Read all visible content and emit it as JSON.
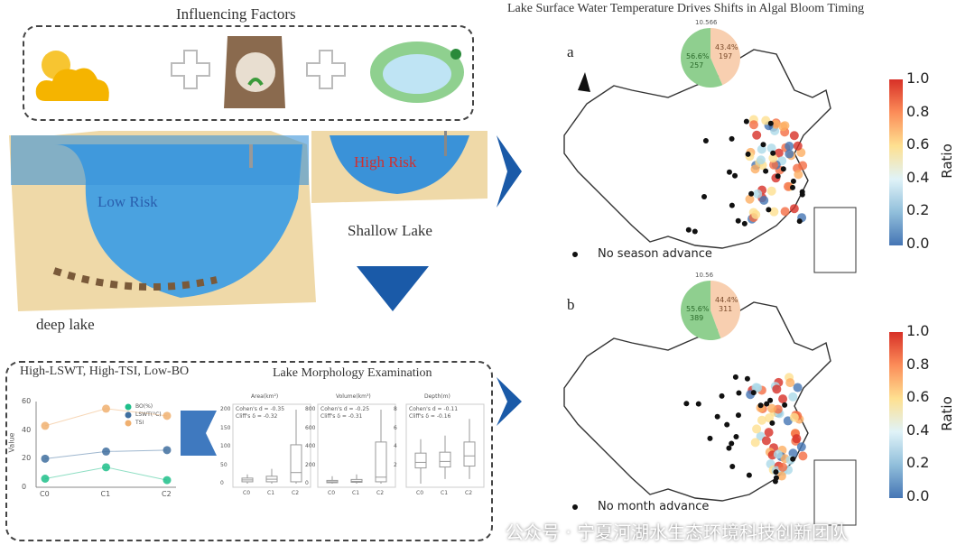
{
  "left": {
    "factors_title": "Influencing Factors",
    "factor_icons": [
      "sun-cloud-icon",
      "fertilizer-bag-icon",
      "lake-algae-icon"
    ],
    "low_risk": "Low Risk",
    "high_risk": "High Risk",
    "shallow_lake": "Shallow Lake",
    "deep_lake": "deep lake"
  },
  "bottom": {
    "cluster_title": "High-LSWT, High-TSI, Low-BO",
    "morph_title": "Lake Morphology Examination",
    "line_chart": {
      "ylabel": "Value",
      "yticks": [
        "0",
        "20",
        "40",
        "60"
      ],
      "xticks": [
        "C0",
        "C1",
        "C2"
      ],
      "legend": [
        "BO(%)",
        "LSWT(°C)",
        "TSI"
      ],
      "series": [
        {
          "name": "BO(%)",
          "values": [
            6,
            14,
            5
          ],
          "color": "#1fbf8a"
        },
        {
          "name": "LSWT(°C)",
          "values": [
            20,
            25,
            26
          ],
          "color": "#3f6f9f"
        },
        {
          "name": "TSI",
          "values": [
            43,
            55,
            50
          ],
          "color": "#f0b070"
        }
      ]
    },
    "boxplots": [
      {
        "title": "Area(km²)",
        "stat1": "Cohen's d = -0.35",
        "stat2": "Cliff's δ = -0.32",
        "yticks": [
          "0",
          "50",
          "100",
          "150",
          "200"
        ],
        "xticks": [
          "C0",
          "C1",
          "C2"
        ]
      },
      {
        "title": "Volume(km³)",
        "stat1": "Cohen's d = -0.25",
        "stat2": "Cliff's δ = -0.31",
        "yticks": [
          "0",
          "200",
          "400",
          "600",
          "800"
        ],
        "xticks": [
          "C0",
          "C1",
          "C2"
        ]
      },
      {
        "title": "Depth(m)",
        "stat1": "Cohen's d = -0.11",
        "stat2": "Cliff's δ = -0.16",
        "yticks": [
          "2",
          "4",
          "6",
          "8"
        ],
        "xticks": [
          "C0",
          "C1",
          "C2"
        ]
      }
    ]
  },
  "right": {
    "title": "Lake Surface Water Temperature Drives Shifts in Algal Bloom Timing",
    "panels": [
      {
        "label": "a",
        "pie_top": "10.566",
        "green_pct": "56.6%",
        "green_n": "257",
        "peach_pct": "43.4%",
        "peach_n": "197",
        "legend": "No season advance"
      },
      {
        "label": "b",
        "pie_top": "10.56",
        "green_pct": "55.6%",
        "green_n": "389",
        "peach_pct": "44.4%",
        "peach_n": "311",
        "legend": "No month advance"
      }
    ],
    "colorbar": {
      "label": "Ratio",
      "ticks": [
        "1.0",
        "0.8",
        "0.6",
        "0.4",
        "0.2",
        "0.0"
      ]
    }
  },
  "watermark": "公众号 · 宁夏河湖水生态环境科技创新团队",
  "colors": {
    "water": "#3a8fd6",
    "arrow": "#1a5aa8",
    "pie_green": "#8fcf8f",
    "pie_peach": "#f8cfb0"
  }
}
